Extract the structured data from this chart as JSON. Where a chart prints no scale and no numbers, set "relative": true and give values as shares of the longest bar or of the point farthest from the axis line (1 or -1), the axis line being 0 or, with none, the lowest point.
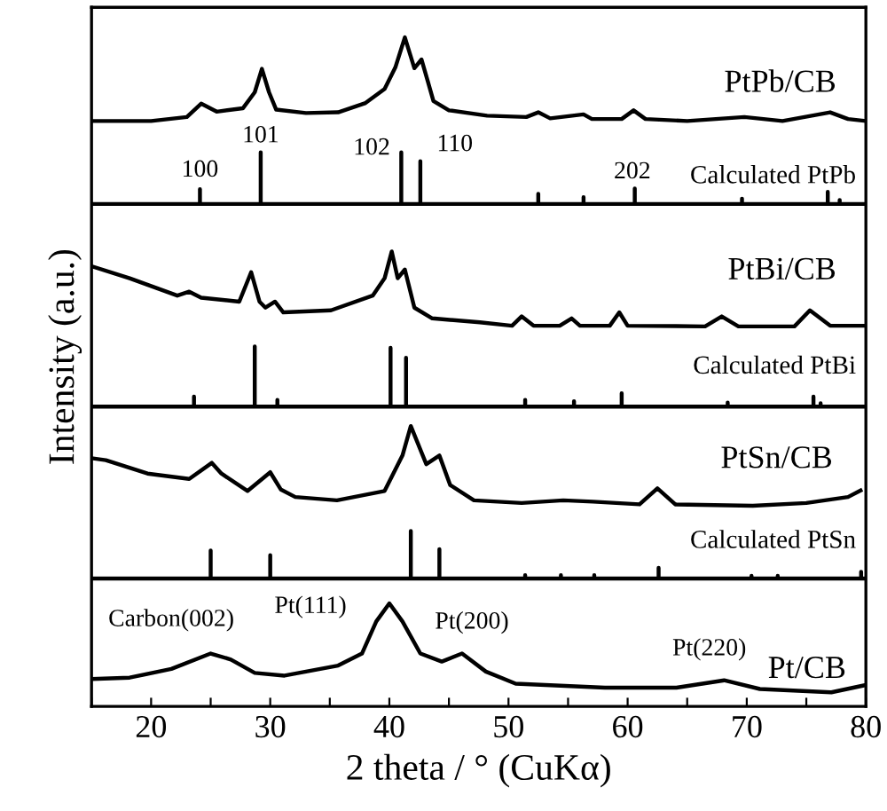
{
  "chart_data": {
    "type": "line",
    "relative": true,
    "xlabel": "2 theta / ° (CuKα)",
    "ylabel": "Intensity (a.u.)",
    "xlim": [
      15,
      80
    ],
    "xticks": [
      {
        "value": 15,
        "label": null
      },
      20,
      {
        "value": 25,
        "label": null
      },
      30,
      {
        "value": 35,
        "label": null
      },
      40,
      {
        "value": 45,
        "label": null
      },
      50,
      {
        "value": 55,
        "label": null
      },
      60,
      {
        "value": 65,
        "label": null
      },
      70,
      {
        "value": 75,
        "label": null
      },
      80
    ],
    "tick_labels": "x",
    "series": [
      {
        "name": "PtPb/CB",
        "color": "#000000",
        "x": [
          15,
          20,
          23,
          24.2,
          25.5,
          27.7,
          28.7,
          29.3,
          29.9,
          30.5,
          33,
          35.7,
          38,
          39.6,
          40.5,
          41.3,
          42.1,
          42.7,
          43.2,
          43.7,
          45,
          48.2,
          51.5,
          52.5,
          53.5,
          56.3,
          57,
          59.5,
          60.5,
          61.5,
          65,
          69.8,
          73,
          77,
          78.5,
          80
        ],
        "values": [
          0.875,
          0.875,
          0.881,
          0.901,
          0.889,
          0.894,
          0.918,
          0.953,
          0.918,
          0.892,
          0.887,
          0.888,
          0.902,
          0.923,
          0.955,
          1.0,
          0.954,
          0.967,
          0.936,
          0.905,
          0.891,
          0.883,
          0.881,
          0.888,
          0.879,
          0.885,
          0.878,
          0.878,
          0.891,
          0.878,
          0.875,
          0.881,
          0.875,
          0.888,
          0.878,
          0.875
        ]
      },
      {
        "name": "Calculated PtPb",
        "color": "#000000",
        "x": [
          15,
          24.1,
          24.1,
          24.1,
          29.2,
          29.2,
          29.2,
          41.0,
          41.0,
          41.0,
          42.6,
          42.6,
          42.6,
          52.5,
          52.5,
          52.5,
          56.3,
          56.3,
          56.3,
          60.6,
          60.6,
          60.6,
          69.6,
          69.6,
          69.6,
          76.8,
          76.8,
          76.8,
          77.8,
          77.8,
          77.8,
          80
        ],
        "values": [
          0.751,
          0.751,
          0.773,
          0.751,
          0.751,
          0.828,
          0.751,
          0.751,
          0.828,
          0.751,
          0.751,
          0.815,
          0.751,
          0.751,
          0.766,
          0.751,
          0.751,
          0.761,
          0.751,
          0.751,
          0.774,
          0.751,
          0.751,
          0.759,
          0.751,
          0.751,
          0.769,
          0.751,
          0.751,
          0.757,
          0.751,
          0.751
        ]
      },
      {
        "name": "PtBi/CB",
        "color": "#000000",
        "x": [
          15,
          18.2,
          22.2,
          23.2,
          24.2,
          27.4,
          28.4,
          29.1,
          29.6,
          30.4,
          31.1,
          35.1,
          38.6,
          39.6,
          40.2,
          40.7,
          41.3,
          42.1,
          43.6,
          47.6,
          50.3,
          51.1,
          52.1,
          54.3,
          55.3,
          56.0,
          58.5,
          59.3,
          60.0,
          66.5,
          67.9,
          69.3,
          74.0,
          75.3,
          77.0,
          80
        ],
        "values": [
          0.658,
          0.64,
          0.614,
          0.62,
          0.611,
          0.605,
          0.649,
          0.605,
          0.596,
          0.605,
          0.589,
          0.592,
          0.614,
          0.64,
          0.68,
          0.64,
          0.653,
          0.596,
          0.58,
          0.574,
          0.569,
          0.583,
          0.569,
          0.569,
          0.58,
          0.569,
          0.569,
          0.589,
          0.569,
          0.568,
          0.583,
          0.568,
          0.568,
          0.592,
          0.569,
          0.569
        ]
      },
      {
        "name": "Calculated PtBi",
        "color": "#000000",
        "x": [
          15,
          23.6,
          23.6,
          23.6,
          28.7,
          28.7,
          28.7,
          30.6,
          30.6,
          30.6,
          40.1,
          40.1,
          40.1,
          41.4,
          41.4,
          41.4,
          51.4,
          51.4,
          51.4,
          55.5,
          55.5,
          55.5,
          59.5,
          59.5,
          59.5,
          68.4,
          68.4,
          68.4,
          75.6,
          75.6,
          75.6,
          76.2,
          76.2,
          76.2,
          80
        ],
        "values": [
          0.448,
          0.448,
          0.463,
          0.448,
          0.448,
          0.538,
          0.448,
          0.448,
          0.458,
          0.448,
          0.448,
          0.536,
          0.448,
          0.448,
          0.521,
          0.448,
          0.448,
          0.458,
          0.448,
          0.448,
          0.456,
          0.448,
          0.448,
          0.468,
          0.448,
          0.448,
          0.454,
          0.448,
          0.448,
          0.463,
          0.448,
          0.448,
          0.453,
          0.448,
          0.448
        ]
      },
      {
        "name": "PtSn/CB",
        "color": "#000000",
        "x": [
          15,
          16.2,
          19.7,
          23.2,
          25.1,
          25.9,
          28.1,
          30.0,
          30.9,
          32.1,
          35.6,
          39.6,
          41.1,
          41.8,
          43.1,
          44.2,
          45.1,
          47.1,
          51.1,
          54.6,
          57.1,
          61.0,
          62.5,
          64.0,
          70.5,
          75.0,
          78.5,
          79.7
        ],
        "values": [
          0.371,
          0.368,
          0.348,
          0.34,
          0.364,
          0.348,
          0.322,
          0.35,
          0.324,
          0.313,
          0.308,
          0.322,
          0.375,
          0.419,
          0.362,
          0.375,
          0.331,
          0.308,
          0.304,
          0.308,
          0.306,
          0.302,
          0.326,
          0.302,
          0.3,
          0.304,
          0.313,
          0.324
        ]
      },
      {
        "name": "Calculated PtSn",
        "color": "#000000",
        "x": [
          15,
          25.0,
          25.0,
          25.0,
          30.0,
          30.0,
          30.0,
          41.8,
          41.8,
          41.8,
          44.2,
          44.2,
          44.2,
          51.4,
          51.4,
          51.4,
          54.4,
          54.4,
          54.4,
          57.2,
          57.2,
          57.2,
          62.6,
          62.6,
          62.6,
          70.4,
          70.4,
          70.4,
          72.6,
          72.6,
          72.6,
          79.6,
          79.6,
          79.6,
          80
        ],
        "values": [
          0.191,
          0.191,
          0.233,
          0.191,
          0.191,
          0.226,
          0.191,
          0.191,
          0.262,
          0.191,
          0.191,
          0.235,
          0.191,
          0.191,
          0.196,
          0.191,
          0.191,
          0.196,
          0.191,
          0.191,
          0.196,
          0.191,
          0.191,
          0.207,
          0.191,
          0.191,
          0.195,
          0.191,
          0.191,
          0.195,
          0.191,
          0.191,
          0.201,
          0.191,
          0.191
        ]
      },
      {
        "name": "Pt/CB",
        "color": "#000000",
        "x": [
          15,
          18.2,
          21.7,
          25.0,
          26.7,
          28.7,
          31.2,
          35.7,
          37.7,
          38.9,
          40.0,
          41.1,
          42.6,
          44.4,
          46.1,
          48.1,
          50.6,
          58.1,
          64.1,
          68.1,
          71.1,
          77.1,
          80
        ],
        "values": [
          0.041,
          0.043,
          0.056,
          0.079,
          0.07,
          0.05,
          0.046,
          0.061,
          0.079,
          0.127,
          0.154,
          0.127,
          0.079,
          0.067,
          0.079,
          0.052,
          0.034,
          0.028,
          0.028,
          0.039,
          0.026,
          0.021,
          0.032
        ]
      }
    ],
    "annotations": [
      {
        "text": "100",
        "x": 24.1,
        "y": 0.773
      },
      {
        "text": "101",
        "x": 29.2,
        "y": 0.828
      },
      {
        "text": "102",
        "x": 41.0,
        "y": 0.828
      },
      {
        "text": "110",
        "x": 42.6,
        "y": 0.815
      },
      {
        "text": "202",
        "x": 60.6,
        "y": 0.774
      },
      {
        "text": "Carbon(002)",
        "x": 25.0,
        "y": 0.079
      },
      {
        "text": "Pt(111)",
        "x": 40.0,
        "y": 0.154
      },
      {
        "text": "Pt(200)",
        "x": 46.1,
        "y": 0.079
      },
      {
        "text": "Pt(220)",
        "x": 68.1,
        "y": 0.039
      }
    ]
  }
}
